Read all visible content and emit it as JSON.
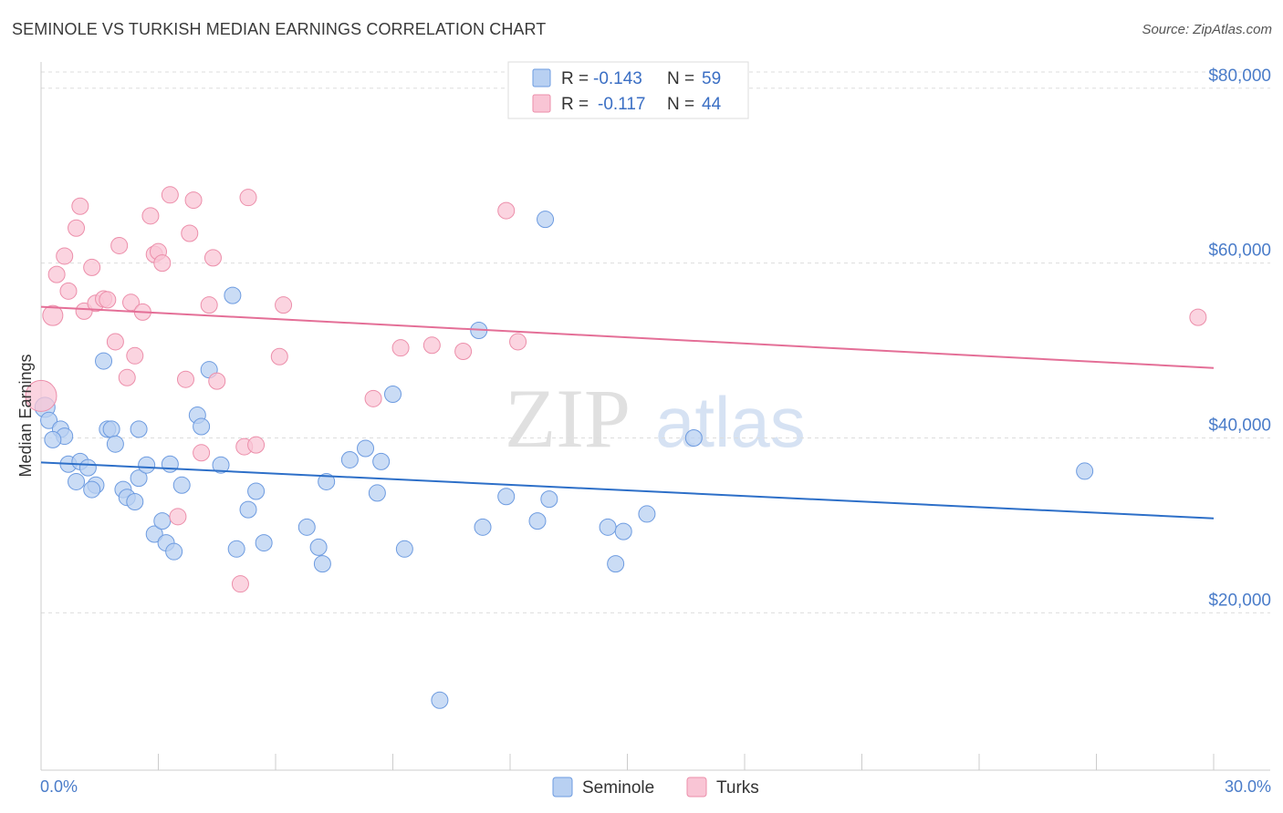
{
  "title": "SEMINOLE VS TURKISH MEDIAN EARNINGS CORRELATION CHART",
  "source": "Source: ZipAtlas.com",
  "watermark": {
    "zip": "ZIP",
    "atlas": "atlas"
  },
  "colors": {
    "blue_fill": "#b8d0f2",
    "blue_stroke": "#6d9be0",
    "blue_line": "#2d6fc8",
    "pink_fill": "#f9c5d5",
    "pink_stroke": "#ec8eaa",
    "pink_line": "#e46f97",
    "tick_label": "#4a7cc9",
    "grid": "#dddddd"
  },
  "legend": {
    "seminole": {
      "r_label": "R = ",
      "r_value": "-0.143",
      "n_label": "N = ",
      "n_value": "59"
    },
    "turks": {
      "r_label": "R = ",
      "r_value": "-0.117",
      "n_label": "N = ",
      "n_value": "44"
    }
  },
  "chart_data": {
    "type": "scatter",
    "title": "SEMINOLE VS TURKISH MEDIAN EARNINGS CORRELATION CHART",
    "xlabel": "",
    "ylabel": "Median Earnings",
    "xlim": [
      0,
      30
    ],
    "ylim": [
      2000,
      83000
    ],
    "x_tick_labels": {
      "left": "0.0%",
      "right": "30.0%"
    },
    "x_minor_ticks": [
      0,
      3,
      6,
      9,
      12,
      15,
      18,
      21,
      24,
      27,
      30
    ],
    "y_ticks": [
      {
        "value": 20000,
        "label": "$20,000"
      },
      {
        "value": 40000,
        "label": "$40,000"
      },
      {
        "value": 60000,
        "label": "$60,000"
      },
      {
        "value": 80000,
        "label": "$80,000"
      }
    ],
    "grid": true,
    "legend_position": "top-center",
    "series": [
      {
        "name": "Seminole",
        "color": "#6d9be0",
        "trend": {
          "x": [
            0,
            30
          ],
          "y": [
            37200,
            30800
          ]
        },
        "points": [
          [
            0.1,
            43500
          ],
          [
            0.2,
            42000
          ],
          [
            0.5,
            41000
          ],
          [
            0.6,
            40200
          ],
          [
            0.3,
            39800
          ],
          [
            0.7,
            37000
          ],
          [
            1.0,
            37300
          ],
          [
            1.2,
            36600
          ],
          [
            0.9,
            35000
          ],
          [
            1.4,
            34600
          ],
          [
            1.3,
            34100
          ],
          [
            1.6,
            48800
          ],
          [
            1.7,
            41000
          ],
          [
            1.8,
            41000
          ],
          [
            1.9,
            39300
          ],
          [
            2.1,
            34100
          ],
          [
            2.2,
            33200
          ],
          [
            2.4,
            32700
          ],
          [
            2.5,
            35400
          ],
          [
            2.5,
            41000
          ],
          [
            2.7,
            36900
          ],
          [
            2.9,
            29000
          ],
          [
            3.1,
            30500
          ],
          [
            3.2,
            28000
          ],
          [
            3.3,
            37000
          ],
          [
            3.4,
            27000
          ],
          [
            3.6,
            34600
          ],
          [
            4.0,
            42600
          ],
          [
            4.1,
            41300
          ],
          [
            4.3,
            47800
          ],
          [
            4.6,
            36900
          ],
          [
            4.9,
            56300
          ],
          [
            5.0,
            27300
          ],
          [
            5.3,
            31800
          ],
          [
            5.5,
            33900
          ],
          [
            5.7,
            28000
          ],
          [
            6.8,
            29800
          ],
          [
            7.1,
            27500
          ],
          [
            7.2,
            25600
          ],
          [
            7.3,
            35000
          ],
          [
            7.9,
            37500
          ],
          [
            8.3,
            38800
          ],
          [
            8.6,
            33700
          ],
          [
            8.7,
            37300
          ],
          [
            9.0,
            45000
          ],
          [
            9.3,
            27300
          ],
          [
            10.2,
            10000
          ],
          [
            11.2,
            52300
          ],
          [
            11.3,
            29800
          ],
          [
            11.9,
            33300
          ],
          [
            12.7,
            30500
          ],
          [
            13.0,
            33000
          ],
          [
            12.9,
            65000
          ],
          [
            14.5,
            29800
          ],
          [
            14.7,
            25600
          ],
          [
            14.9,
            29300
          ],
          [
            15.5,
            31300
          ],
          [
            16.7,
            40000
          ],
          [
            26.7,
            36200
          ]
        ]
      },
      {
        "name": "Turks",
        "color": "#ec8eaa",
        "trend": {
          "x": [
            0,
            30
          ],
          "y": [
            55000,
            48000
          ]
        },
        "points": [
          [
            0.0,
            44800
          ],
          [
            0.3,
            54000
          ],
          [
            0.4,
            58700
          ],
          [
            0.6,
            60800
          ],
          [
            0.7,
            56800
          ],
          [
            0.9,
            64000
          ],
          [
            1.0,
            66500
          ],
          [
            1.1,
            54500
          ],
          [
            1.3,
            59500
          ],
          [
            1.4,
            55400
          ],
          [
            1.6,
            55900
          ],
          [
            1.7,
            55800
          ],
          [
            1.9,
            51000
          ],
          [
            2.0,
            62000
          ],
          [
            2.2,
            46900
          ],
          [
            2.3,
            55500
          ],
          [
            2.4,
            49400
          ],
          [
            2.6,
            54400
          ],
          [
            2.8,
            65400
          ],
          [
            2.9,
            61000
          ],
          [
            3.0,
            61300
          ],
          [
            3.1,
            60000
          ],
          [
            3.3,
            67800
          ],
          [
            3.5,
            31000
          ],
          [
            3.7,
            46700
          ],
          [
            3.8,
            63400
          ],
          [
            3.9,
            67200
          ],
          [
            4.1,
            38300
          ],
          [
            4.3,
            55200
          ],
          [
            4.4,
            60600
          ],
          [
            4.5,
            46500
          ],
          [
            5.1,
            23300
          ],
          [
            5.2,
            39000
          ],
          [
            5.3,
            67500
          ],
          [
            5.5,
            39200
          ],
          [
            6.2,
            55200
          ],
          [
            6.1,
            49300
          ],
          [
            8.5,
            44500
          ],
          [
            9.2,
            50300
          ],
          [
            10.0,
            50600
          ],
          [
            10.8,
            49900
          ],
          [
            11.9,
            66000
          ],
          [
            12.2,
            51000
          ],
          [
            29.6,
            53800
          ]
        ]
      }
    ]
  }
}
